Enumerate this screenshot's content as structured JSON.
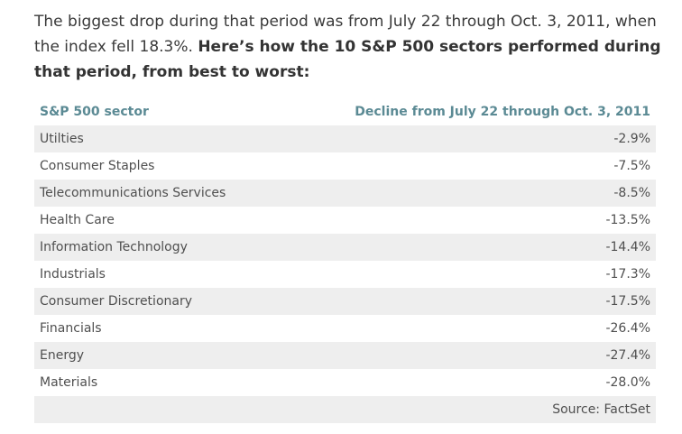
{
  "intro": {
    "plain": "The biggest drop during that period was from July 22 through Oct. 3, 2011, when the index fell 18.3%. ",
    "bold": "Here’s how the 10 S&P 500 sectors performed during that period, from best to worst:"
  },
  "table": {
    "headers": {
      "sector": "S&P 500 sector",
      "decline": "Decline from July 22 through Oct. 3, 2011"
    },
    "rows": [
      {
        "sector": "Utilties",
        "decline": "-2.9%"
      },
      {
        "sector": "Consumer Staples",
        "decline": "-7.5%"
      },
      {
        "sector": "Telecommunications Services",
        "decline": "-8.5%"
      },
      {
        "sector": "Health Care",
        "decline": "-13.5%"
      },
      {
        "sector": "Information Technology",
        "decline": "-14.4%"
      },
      {
        "sector": "Industrials",
        "decline": "-17.3%"
      },
      {
        "sector": "Consumer Discretionary",
        "decline": "-17.5%"
      },
      {
        "sector": "Financials",
        "decline": "-26.4%"
      },
      {
        "sector": "Energy",
        "decline": "-27.4%"
      },
      {
        "sector": "Materials",
        "decline": "-28.0%"
      }
    ],
    "source": "Source: FactSet"
  }
}
